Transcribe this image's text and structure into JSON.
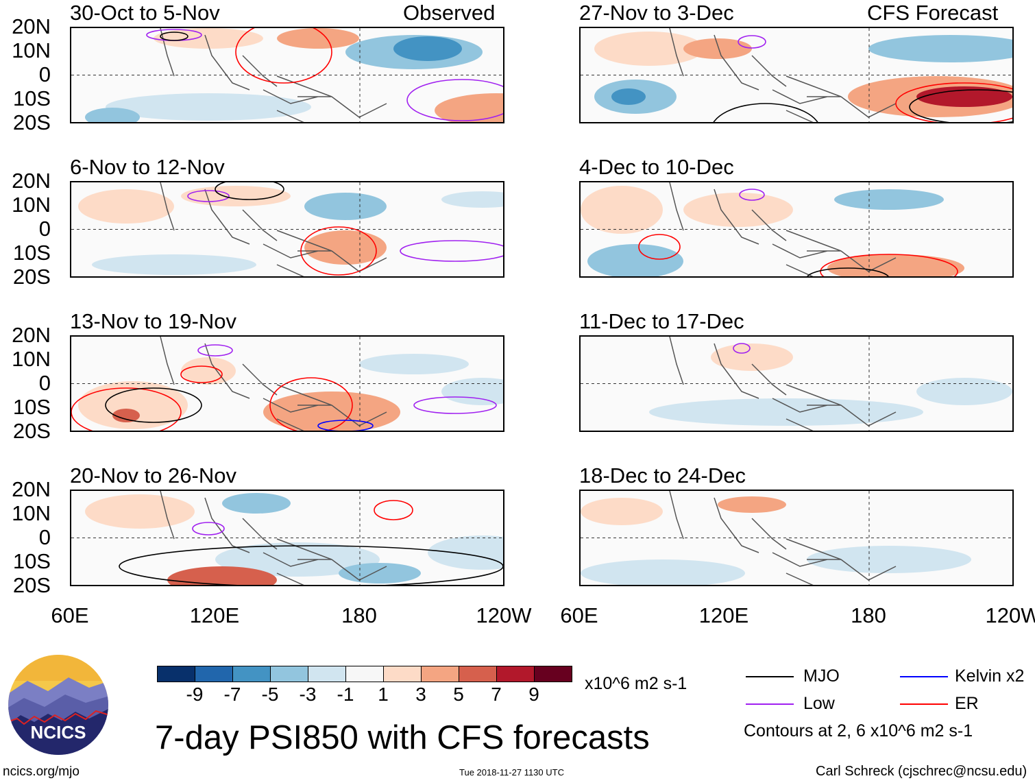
{
  "headers": {
    "observed": "Observed",
    "forecast": "CFS Forecast"
  },
  "panels_left": [
    {
      "title": "30-Oct to 5-Nov"
    },
    {
      "title": "6-Nov to 12-Nov"
    },
    {
      "title": "13-Nov to 19-Nov"
    },
    {
      "title": "20-Nov to 26-Nov"
    }
  ],
  "panels_right": [
    {
      "title": "27-Nov to 3-Dec"
    },
    {
      "title": "4-Dec to 10-Dec"
    },
    {
      "title": "11-Dec to 17-Dec"
    },
    {
      "title": "18-Dec to 24-Dec"
    }
  ],
  "lat_labels": [
    "20N",
    "10N",
    "0",
    "10S",
    "20S"
  ],
  "lon_labels": [
    "60E",
    "120E",
    "180",
    "120W"
  ],
  "colorbar": {
    "colors": [
      "#08306b",
      "#2166ac",
      "#4393c3",
      "#92c5de",
      "#d1e5f0",
      "#f7f7f7",
      "#fddbc7",
      "#f4a582",
      "#d6604d",
      "#b2182b",
      "#67001f"
    ],
    "labels": [
      "-9",
      "-7",
      "-5",
      "-3",
      "-1",
      "1",
      "3",
      "5",
      "7",
      "9"
    ],
    "units": "x10^6 m2 s-1"
  },
  "title": "7-day PSI850 with CFS forecasts",
  "legend": {
    "items": [
      {
        "label": "MJO",
        "color": "#000000"
      },
      {
        "label": "Kelvin x2",
        "color": "#0000ff"
      },
      {
        "label": "Low",
        "color": "#a020f0"
      },
      {
        "label": "ER",
        "color": "#ff0000"
      }
    ],
    "contours": "Contours at 2, 6 x10^6 m2 s-1"
  },
  "logo": {
    "text": "NCICS"
  },
  "footer": {
    "url": "ncics.org/mjo",
    "timestamp": "Tue 2018-11-27 1130 UTC",
    "author": "Carl Schreck (cjschrec@ncsu.edu)"
  }
}
